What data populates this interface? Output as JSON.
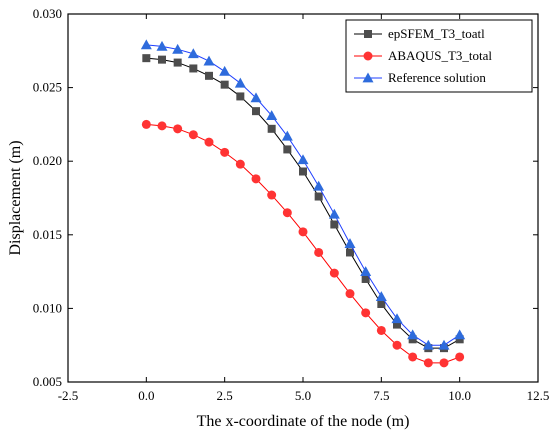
{
  "chart_data": {
    "type": "line",
    "xlabel": "The x-coordinate of the node (m)",
    "ylabel": "Displacement (m)",
    "xlim": [
      -2.5,
      12.5
    ],
    "ylim": [
      0.005,
      0.03
    ],
    "x_ticks": [
      "-2.5",
      "0.0",
      "2.5",
      "5.0",
      "7.5",
      "10.0",
      "12.5"
    ],
    "y_ticks": [
      "0.005",
      "0.010",
      "0.015",
      "0.020",
      "0.025",
      "0.030"
    ],
    "grid": false,
    "legend_position": "top-right",
    "x": [
      0,
      0.5,
      1,
      1.5,
      2,
      2.5,
      3,
      3.5,
      4,
      4.5,
      5,
      5.5,
      6,
      6.5,
      7,
      7.5,
      8,
      8.5,
      9,
      9.5,
      10
    ],
    "series": [
      {
        "name": "epSFEM_T3_toatl",
        "marker": "square",
        "color": "#000000",
        "marker_color": "#4d4d4d",
        "values": [
          0.027,
          0.0269,
          0.0267,
          0.0263,
          0.0258,
          0.0252,
          0.0244,
          0.0234,
          0.0222,
          0.0208,
          0.0193,
          0.0176,
          0.0157,
          0.0138,
          0.012,
          0.0103,
          0.0089,
          0.0079,
          0.0073,
          0.0073,
          0.0079
        ]
      },
      {
        "name": "ABAQUS_T3_total",
        "marker": "circle",
        "color": "#ff0000",
        "marker_color": "#ff3333",
        "values": [
          0.0225,
          0.0224,
          0.0222,
          0.0218,
          0.0213,
          0.0206,
          0.0198,
          0.0188,
          0.0177,
          0.0165,
          0.0152,
          0.0138,
          0.0124,
          0.011,
          0.0097,
          0.0085,
          0.0075,
          0.0067,
          0.0063,
          0.0063,
          0.0067
        ]
      },
      {
        "name": "Reference solution",
        "marker": "triangle",
        "color": "#1f3fff",
        "marker_color": "#2e6bdc",
        "values": [
          0.0279,
          0.0278,
          0.0276,
          0.0273,
          0.0268,
          0.0261,
          0.0253,
          0.0243,
          0.0231,
          0.0217,
          0.0201,
          0.0183,
          0.0164,
          0.0144,
          0.0125,
          0.0108,
          0.0093,
          0.0082,
          0.0075,
          0.0075,
          0.0082
        ]
      }
    ]
  }
}
